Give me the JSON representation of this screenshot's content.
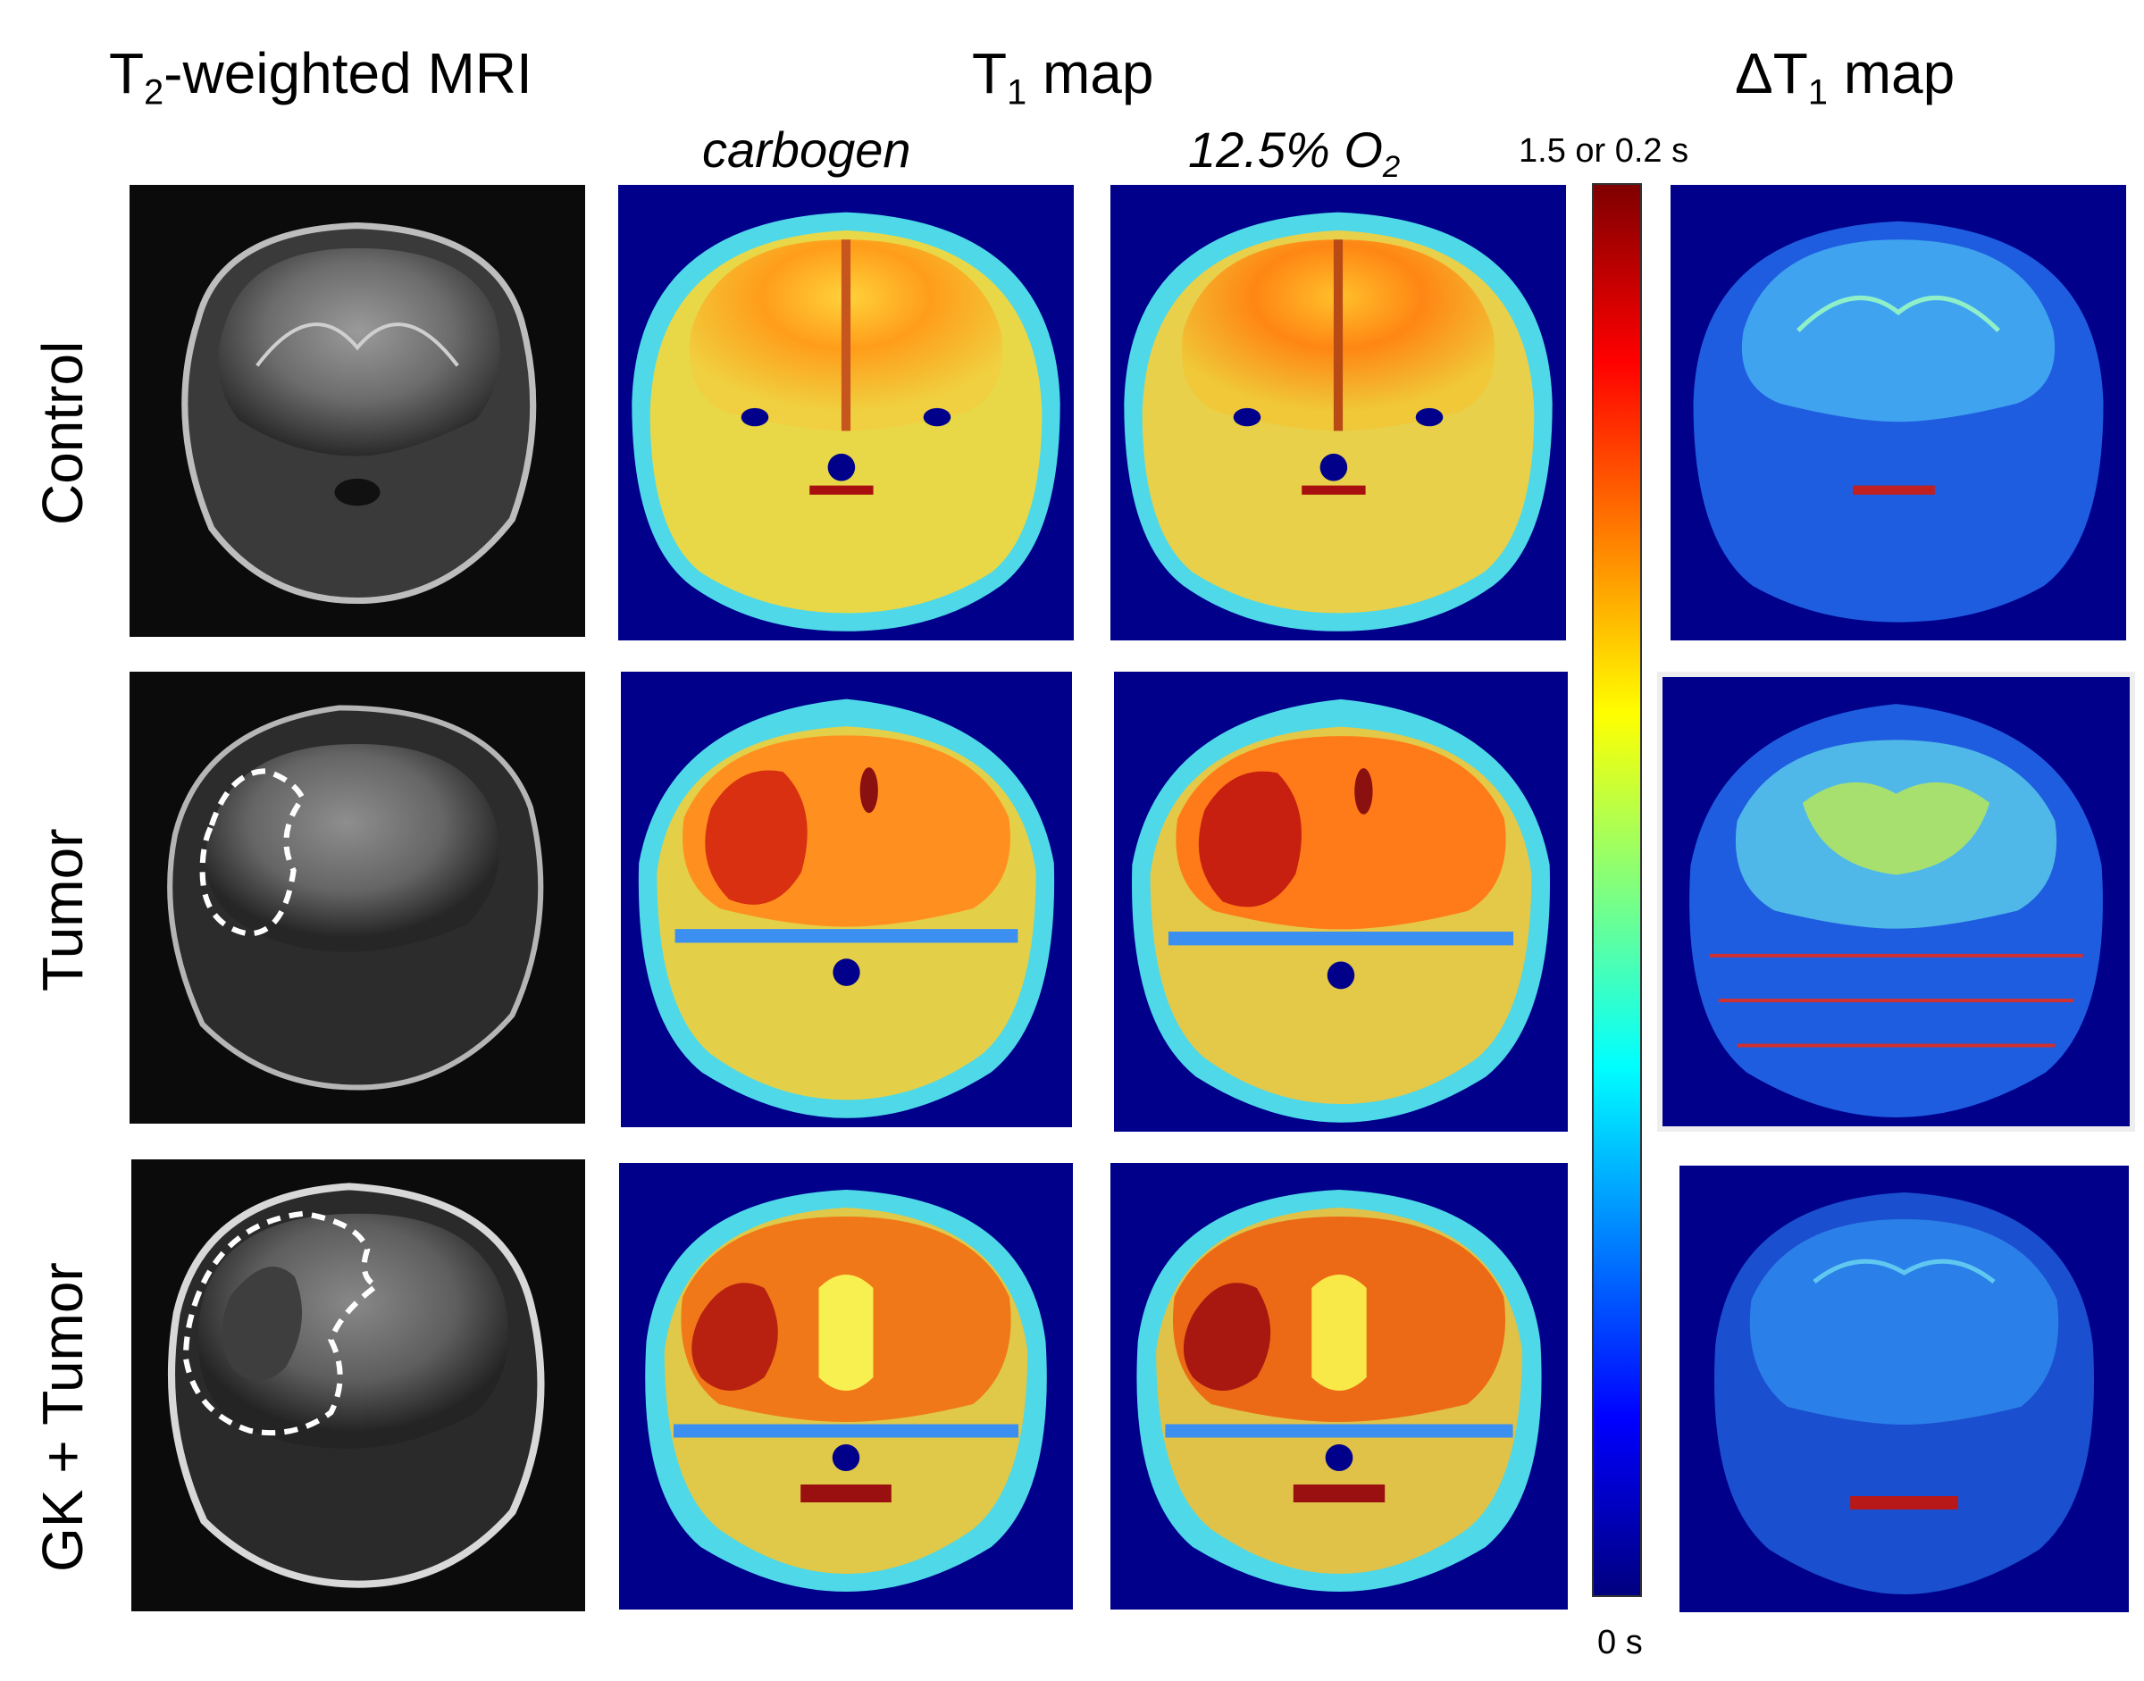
{
  "columns": {
    "t2": {
      "pre": "T",
      "sub": "2",
      "post": "-weighted MRI"
    },
    "t1": {
      "pre": "T",
      "sub": "1",
      "post": " map"
    },
    "dt1": {
      "pre": "ΔT",
      "sub": "1",
      "post": " map"
    }
  },
  "conditions": {
    "carbogen": "carbogen",
    "hypoxia": {
      "pre": "12.5% O",
      "sub": "2"
    }
  },
  "rows": [
    "Control",
    "Tumor",
    "GK + Tumor"
  ],
  "colorbar": {
    "max_label": "1.5 or 0.2 s",
    "min_label": "0 s",
    "colormap": [
      "#00007f",
      "#0000ff",
      "#007fff",
      "#00ffff",
      "#7fff7f",
      "#ffff00",
      "#ff7f00",
      "#ff0000",
      "#7f0000"
    ]
  },
  "colors": {
    "background_map": "#00008b",
    "mri_background": "#0b0b0b",
    "tumor_outline": "#ffffff"
  }
}
